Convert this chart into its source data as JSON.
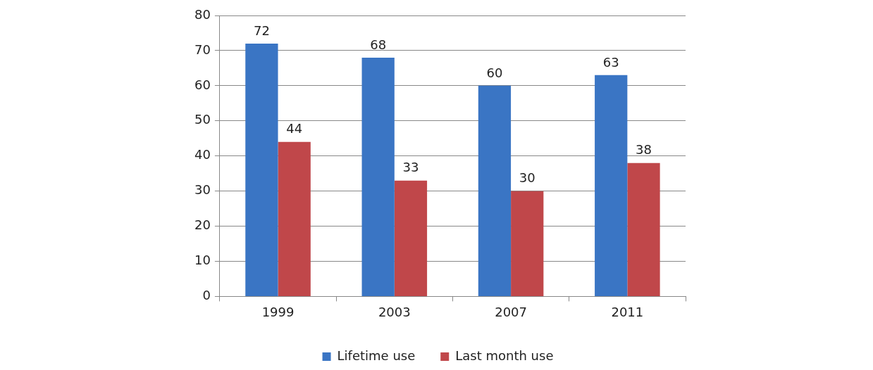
{
  "chart_data": {
    "type": "bar",
    "categories": [
      "1999",
      "2003",
      "2007",
      "2011"
    ],
    "series": [
      {
        "name": "Lifetime use",
        "color": "#3a75c4",
        "values": [
          72,
          68,
          60,
          63
        ]
      },
      {
        "name": "Last month use",
        "color": "#c0474a",
        "values": [
          44,
          33,
          30,
          38
        ]
      }
    ],
    "ylim": [
      0,
      80
    ],
    "yticks": [
      0,
      10,
      20,
      30,
      40,
      50,
      60,
      70,
      80
    ],
    "grid": "y",
    "legend": "bottom",
    "data_labels": true
  }
}
